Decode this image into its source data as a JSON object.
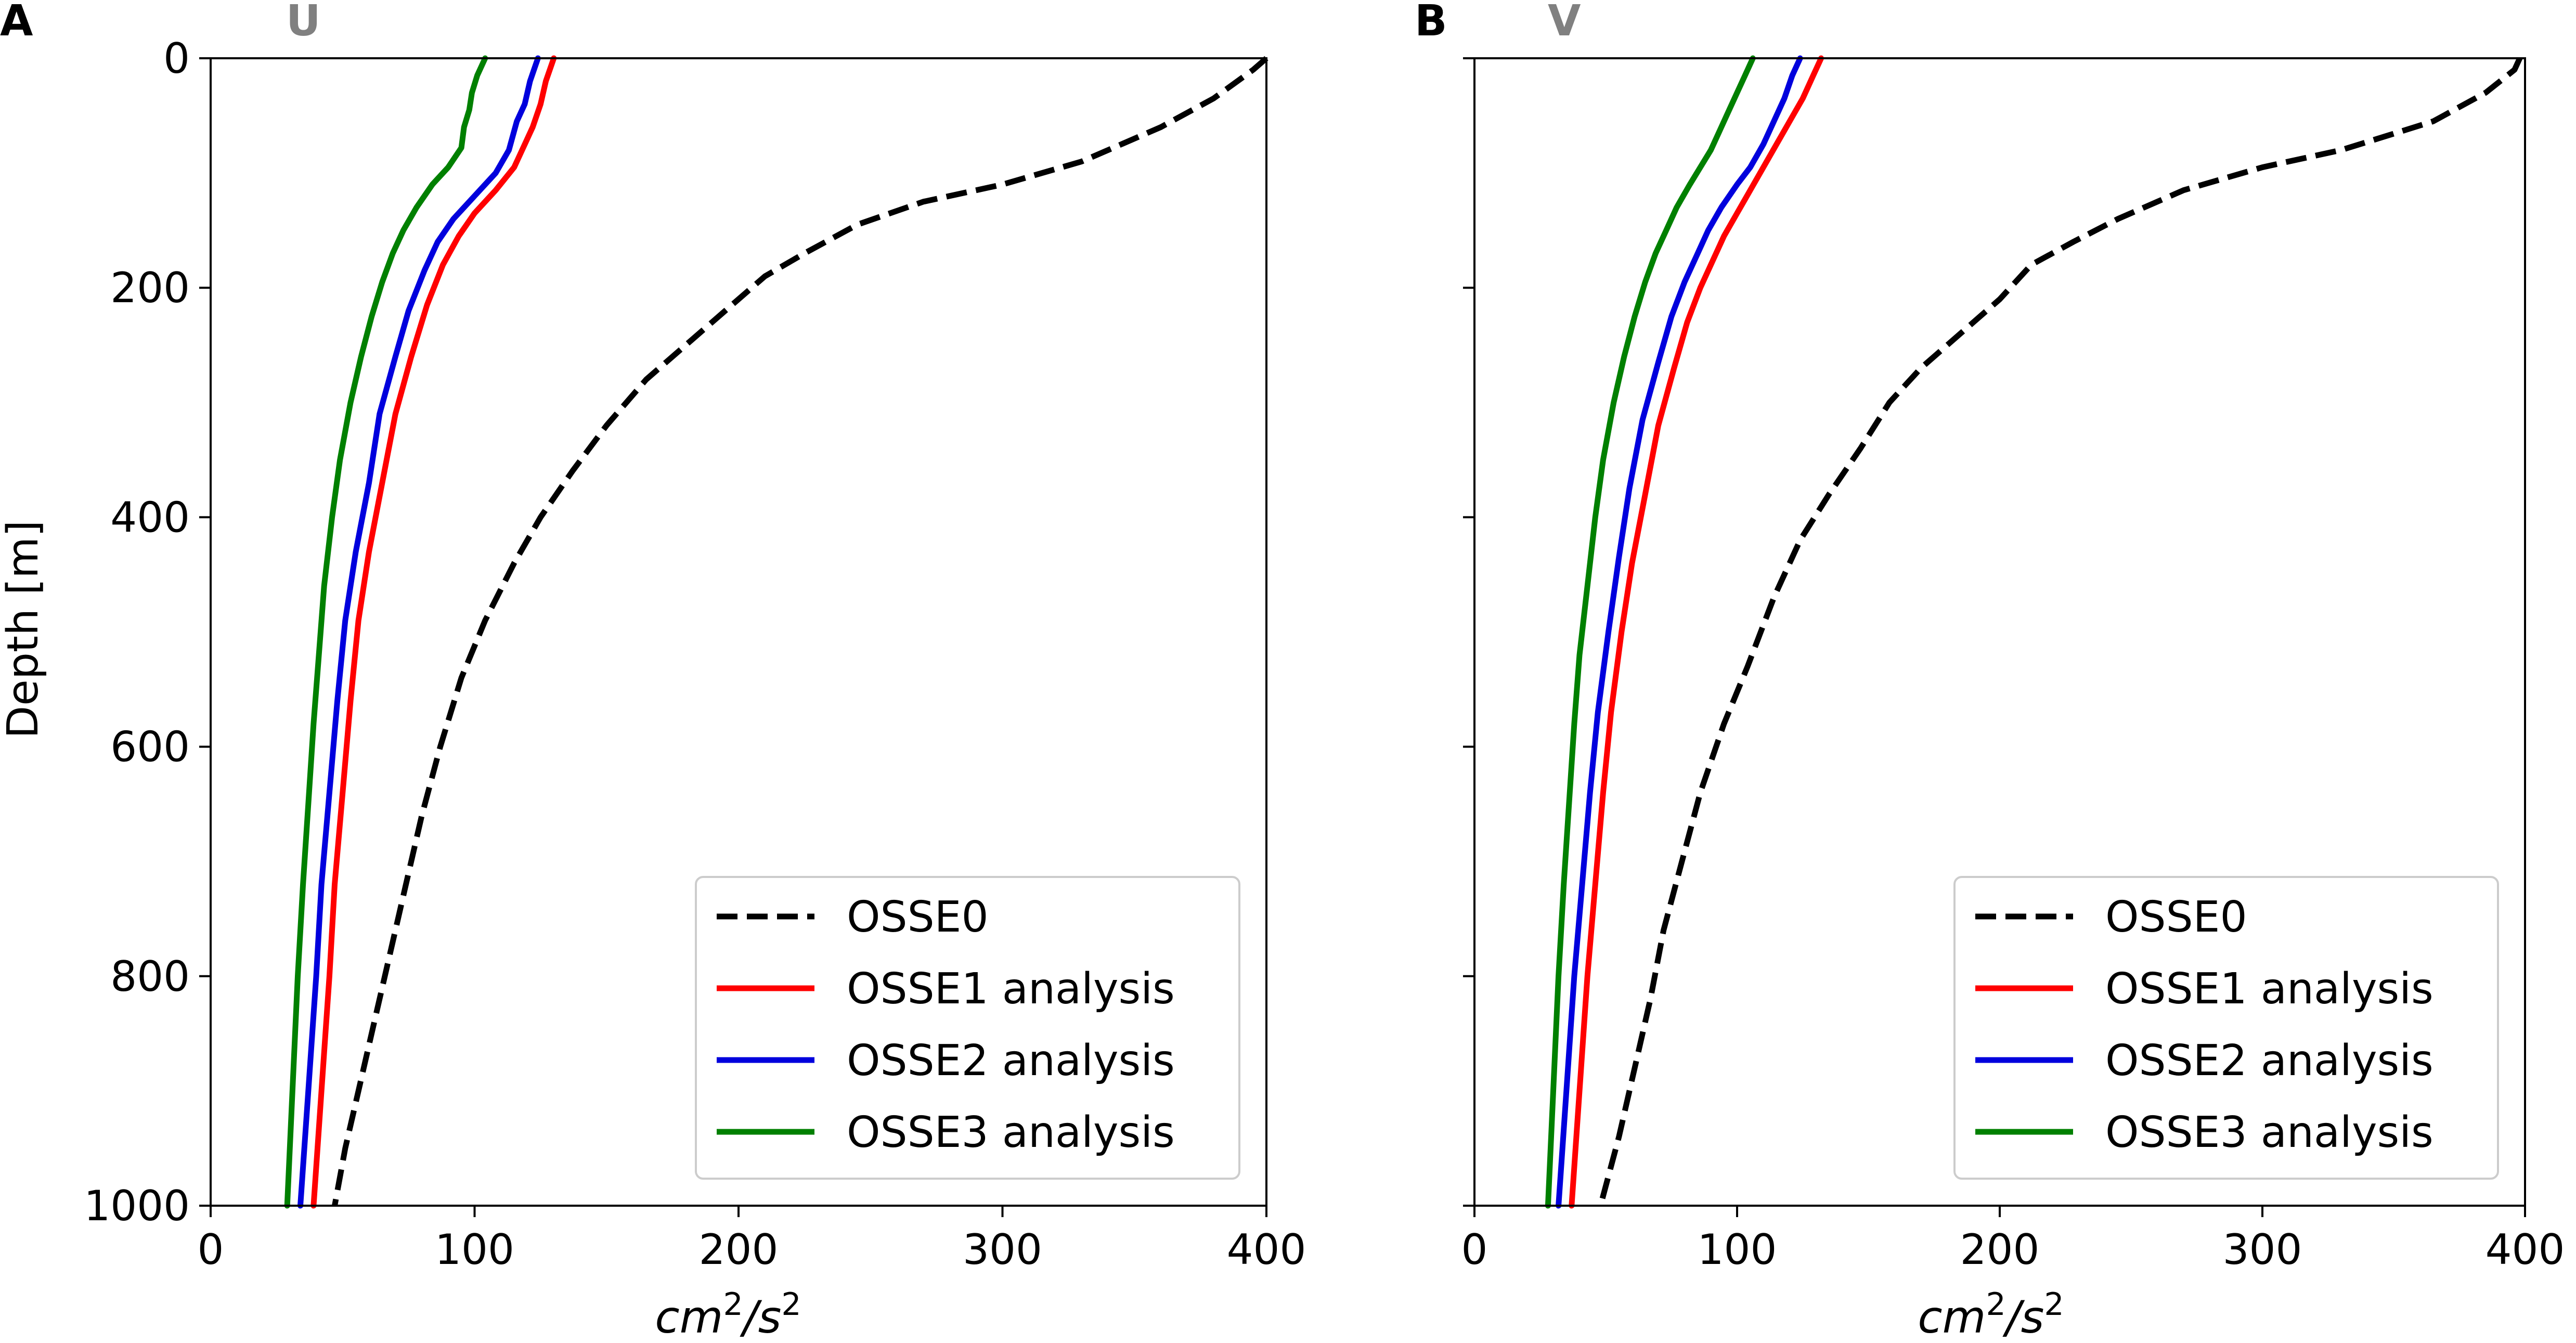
{
  "chart_data": [
    {
      "type": "line",
      "panel_label": "A",
      "title": "U",
      "xlabel_base": "cm",
      "xlabel_sup1": "2",
      "xlabel_sep": "/s",
      "xlabel_sup2": "2",
      "ylabel": "Depth [m]",
      "xlim": [
        0,
        400
      ],
      "ylim": [
        1000,
        0
      ],
      "x_ticks": [
        0,
        100,
        200,
        300,
        400
      ],
      "y_ticks": [
        0,
        200,
        400,
        600,
        800,
        1000
      ],
      "show_ytick_labels": true,
      "legend_position": "lower-right",
      "series": [
        {
          "name": "OSSE0",
          "color": "#000000",
          "dash": true,
          "points": [
            [
              400,
              0
            ],
            [
              395,
              10
            ],
            [
              380,
              35
            ],
            [
              360,
              60
            ],
            [
              330,
              90
            ],
            [
              300,
              110
            ],
            [
              270,
              125
            ],
            [
              245,
              145
            ],
            [
              225,
              170
            ],
            [
              210,
              190
            ],
            [
              195,
              220
            ],
            [
              180,
              250
            ],
            [
              165,
              280
            ],
            [
              150,
              320
            ],
            [
              137,
              360
            ],
            [
              125,
              400
            ],
            [
              115,
              440
            ],
            [
              104,
              490
            ],
            [
              95,
              540
            ],
            [
              87,
              600
            ],
            [
              80,
              660
            ],
            [
              74,
              720
            ],
            [
              68,
              780
            ],
            [
              62,
              840
            ],
            [
              56,
              900
            ],
            [
              51,
              950
            ],
            [
              47,
              1000
            ]
          ]
        },
        {
          "name": "OSSE1 analysis",
          "color": "#ff0000",
          "dash": false,
          "points": [
            [
              130,
              0
            ],
            [
              127,
              20
            ],
            [
              125,
              40
            ],
            [
              122,
              60
            ],
            [
              118,
              80
            ],
            [
              115,
              95
            ],
            [
              108,
              115
            ],
            [
              100,
              135
            ],
            [
              94,
              155
            ],
            [
              88,
              180
            ],
            [
              82,
              215
            ],
            [
              76,
              260
            ],
            [
              70,
              310
            ],
            [
              65,
              370
            ],
            [
              60,
              430
            ],
            [
              56,
              490
            ],
            [
              53,
              560
            ],
            [
              50,
              640
            ],
            [
              47,
              720
            ],
            [
              45,
              800
            ],
            [
              42,
              900
            ],
            [
              39,
              1000
            ]
          ]
        },
        {
          "name": "OSSE2 analysis",
          "color": "#0000dd",
          "dash": false,
          "points": [
            [
              124,
              0
            ],
            [
              121,
              20
            ],
            [
              119,
              40
            ],
            [
              116,
              55
            ],
            [
              113,
              80
            ],
            [
              108,
              100
            ],
            [
              100,
              120
            ],
            [
              92,
              140
            ],
            [
              86,
              160
            ],
            [
              81,
              185
            ],
            [
              75,
              220
            ],
            [
              70,
              260
            ],
            [
              64,
              310
            ],
            [
              60,
              370
            ],
            [
              55,
              430
            ],
            [
              51,
              490
            ],
            [
              48,
              560
            ],
            [
              45,
              640
            ],
            [
              42,
              720
            ],
            [
              40,
              800
            ],
            [
              37,
              900
            ],
            [
              34,
              1000
            ]
          ]
        },
        {
          "name": "OSSE3 analysis",
          "color": "#008000",
          "dash": false,
          "points": [
            [
              104,
              0
            ],
            [
              101,
              15
            ],
            [
              99,
              30
            ],
            [
              98,
              45
            ],
            [
              96,
              60
            ],
            [
              95,
              78
            ],
            [
              90,
              95
            ],
            [
              84,
              110
            ],
            [
              78,
              130
            ],
            [
              73,
              150
            ],
            [
              69,
              170
            ],
            [
              65,
              195
            ],
            [
              61,
              225
            ],
            [
              57,
              260
            ],
            [
              53,
              300
            ],
            [
              49,
              350
            ],
            [
              46,
              400
            ],
            [
              43,
              460
            ],
            [
              41,
              520
            ],
            [
              39,
              580
            ],
            [
              37,
              650
            ],
            [
              35,
              720
            ],
            [
              33,
              800
            ],
            [
              31,
              900
            ],
            [
              29,
              1000
            ]
          ]
        }
      ]
    },
    {
      "type": "line",
      "panel_label": "B",
      "title": "V",
      "xlabel_base": "cm",
      "xlabel_sup1": "2",
      "xlabel_sep": "/s",
      "xlabel_sup2": "2",
      "ylabel": "",
      "xlim": [
        0,
        400
      ],
      "ylim": [
        1000,
        0
      ],
      "x_ticks": [
        0,
        100,
        200,
        300,
        400
      ],
      "y_ticks": [
        0,
        200,
        400,
        600,
        800,
        1000
      ],
      "show_ytick_labels": false,
      "legend_position": "lower-right",
      "series": [
        {
          "name": "OSSE0",
          "color": "#000000",
          "dash": true,
          "points": [
            [
              398,
              0
            ],
            [
              396,
              10
            ],
            [
              385,
              30
            ],
            [
              365,
              55
            ],
            [
              330,
              80
            ],
            [
              300,
              95
            ],
            [
              270,
              115
            ],
            [
              245,
              140
            ],
            [
              228,
              160
            ],
            [
              212,
              180
            ],
            [
              200,
              210
            ],
            [
              185,
              240
            ],
            [
              170,
              270
            ],
            [
              158,
              300
            ],
            [
              147,
              340
            ],
            [
              135,
              380
            ],
            [
              124,
              420
            ],
            [
              114,
              470
            ],
            [
              104,
              530
            ],
            [
              95,
              580
            ],
            [
              86,
              640
            ],
            [
              79,
              700
            ],
            [
              72,
              760
            ],
            [
              67,
              820
            ],
            [
              61,
              880
            ],
            [
              55,
              940
            ],
            [
              48,
              1000
            ]
          ]
        },
        {
          "name": "OSSE1 analysis",
          "color": "#ff0000",
          "dash": false,
          "points": [
            [
              132,
              0
            ],
            [
              129,
              15
            ],
            [
              125,
              35
            ],
            [
              120,
              55
            ],
            [
              115,
              75
            ],
            [
              110,
              95
            ],
            [
              105,
              115
            ],
            [
              100,
              135
            ],
            [
              95,
              155
            ],
            [
              91,
              175
            ],
            [
              86,
              200
            ],
            [
              81,
              230
            ],
            [
              76,
              270
            ],
            [
              70,
              320
            ],
            [
              65,
              380
            ],
            [
              60,
              440
            ],
            [
              56,
              500
            ],
            [
              52,
              570
            ],
            [
              49,
              640
            ],
            [
              46,
              720
            ],
            [
              43,
              800
            ],
            [
              40,
              900
            ],
            [
              37,
              1000
            ]
          ]
        },
        {
          "name": "OSSE2 analysis",
          "color": "#0000dd",
          "dash": false,
          "points": [
            [
              124,
              0
            ],
            [
              121,
              15
            ],
            [
              118,
              35
            ],
            [
              114,
              55
            ],
            [
              110,
              75
            ],
            [
              105,
              95
            ],
            [
              100,
              110
            ],
            [
              94,
              130
            ],
            [
              89,
              150
            ],
            [
              85,
              170
            ],
            [
              80,
              195
            ],
            [
              75,
              225
            ],
            [
              70,
              265
            ],
            [
              64,
              315
            ],
            [
              59,
              375
            ],
            [
              55,
              435
            ],
            [
              51,
              500
            ],
            [
              47,
              570
            ],
            [
              44,
              640
            ],
            [
              41,
              720
            ],
            [
              38,
              800
            ],
            [
              35,
              900
            ],
            [
              32,
              1000
            ]
          ]
        },
        {
          "name": "OSSE3 analysis",
          "color": "#008000",
          "dash": false,
          "points": [
            [
              106,
              0
            ],
            [
              103,
              15
            ],
            [
              100,
              30
            ],
            [
              97,
              45
            ],
            [
              94,
              60
            ],
            [
              90,
              80
            ],
            [
              86,
              95
            ],
            [
              82,
              110
            ],
            [
              77,
              130
            ],
            [
              73,
              150
            ],
            [
              69,
              170
            ],
            [
              65,
              195
            ],
            [
              61,
              225
            ],
            [
              57,
              260
            ],
            [
              53,
              300
            ],
            [
              49,
              350
            ],
            [
              46,
              400
            ],
            [
              43,
              460
            ],
            [
              40,
              520
            ],
            [
              38,
              580
            ],
            [
              36,
              650
            ],
            [
              34,
              720
            ],
            [
              32,
              800
            ],
            [
              30,
              900
            ],
            [
              28,
              1000
            ]
          ]
        }
      ]
    }
  ]
}
